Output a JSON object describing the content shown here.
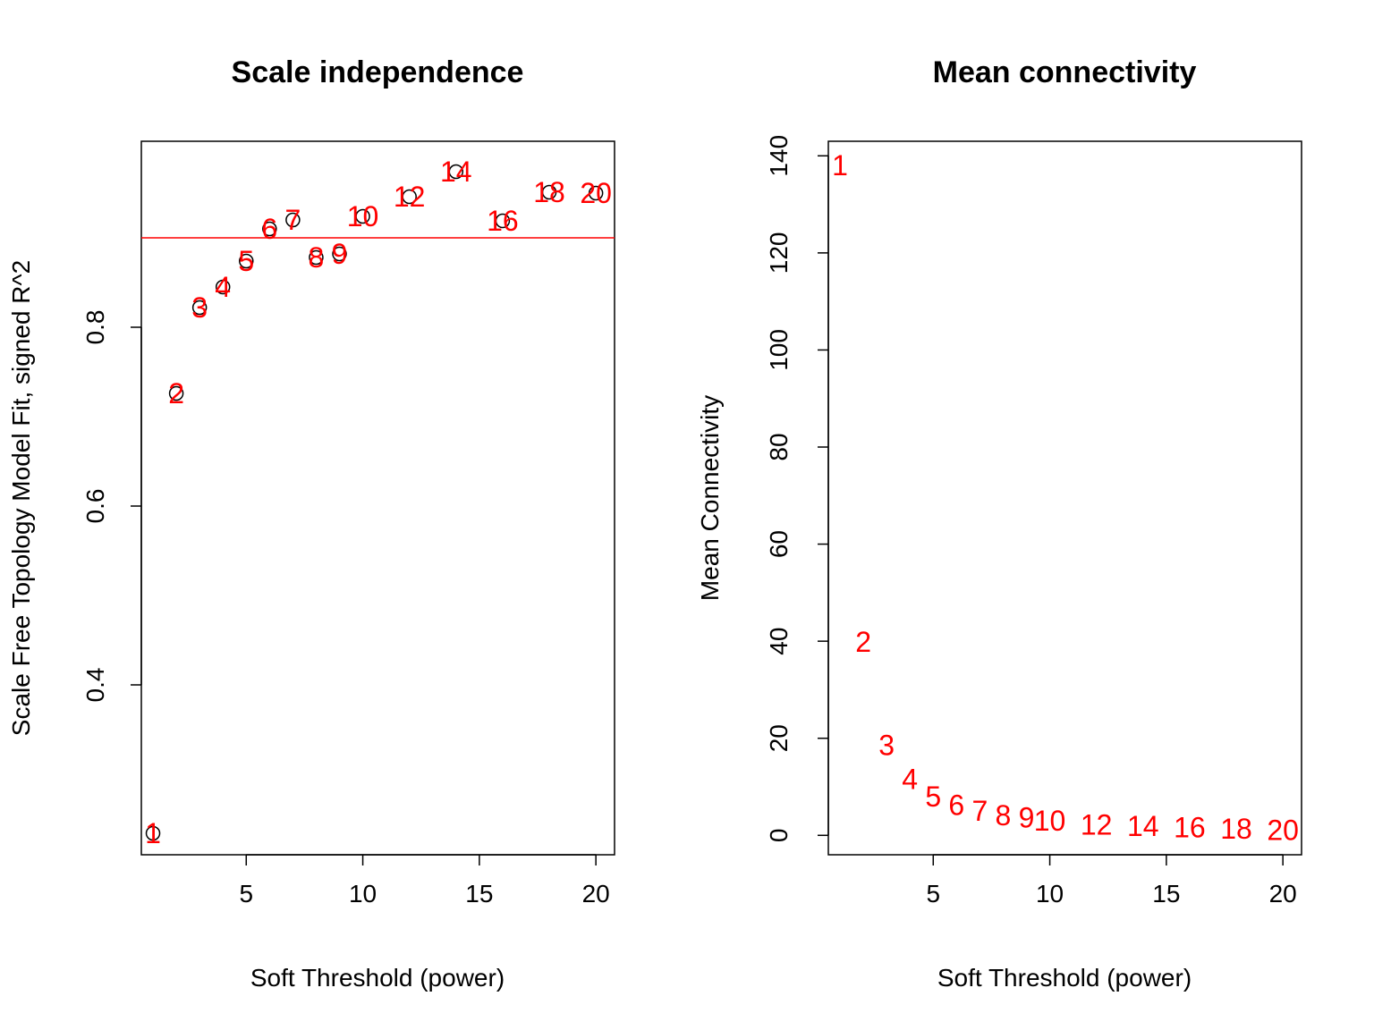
{
  "charts": [
    {
      "id": "scale",
      "type": "scatter",
      "title": "Scale independence",
      "xlabel": "Soft Threshold (power)",
      "ylabel": "Scale Free Topology Model Fit, signed R^2",
      "xlim": [
        0.5,
        20.8
      ],
      "ylim": [
        0.21,
        1.008
      ],
      "xticks": [
        5,
        10,
        15,
        20
      ],
      "yticks": [
        0.4,
        0.6,
        0.8
      ],
      "ytick_labels": [
        "0.4",
        "0.6",
        "0.8"
      ],
      "hline": 0.9,
      "hline_color": "#ff0000",
      "label_color": "#ff0000",
      "show_markers": true,
      "points": [
        {
          "x": 1,
          "y": 0.234,
          "label": "1"
        },
        {
          "x": 2,
          "y": 0.726,
          "label": "2"
        },
        {
          "x": 3,
          "y": 0.822,
          "label": "3"
        },
        {
          "x": 4,
          "y": 0.845,
          "label": "4"
        },
        {
          "x": 5,
          "y": 0.874,
          "label": "5"
        },
        {
          "x": 6,
          "y": 0.91,
          "label": "6"
        },
        {
          "x": 7,
          "y": 0.92,
          "label": "7"
        },
        {
          "x": 8,
          "y": 0.878,
          "label": "8"
        },
        {
          "x": 9,
          "y": 0.882,
          "label": "9"
        },
        {
          "x": 10,
          "y": 0.924,
          "label": "10"
        },
        {
          "x": 12,
          "y": 0.946,
          "label": "12"
        },
        {
          "x": 14,
          "y": 0.974,
          "label": "14"
        },
        {
          "x": 16,
          "y": 0.919,
          "label": "16"
        },
        {
          "x": 18,
          "y": 0.951,
          "label": "18"
        },
        {
          "x": 20,
          "y": 0.95,
          "label": "20"
        }
      ]
    },
    {
      "id": "connectivity",
      "type": "scatter",
      "title": "Mean connectivity",
      "xlabel": "Soft Threshold (power)",
      "ylabel": "Mean Connectivity",
      "xlim": [
        0.5,
        20.8
      ],
      "ylim": [
        -4,
        143
      ],
      "xticks": [
        5,
        10,
        15,
        20
      ],
      "yticks": [
        0,
        20,
        40,
        60,
        80,
        100,
        120,
        140
      ],
      "ytick_labels": [
        "0",
        "20",
        "40",
        "60",
        "80",
        "100",
        "120",
        "140"
      ],
      "label_color": "#ff0000",
      "show_markers": false,
      "points": [
        {
          "x": 1,
          "y": 138.0,
          "label": "1"
        },
        {
          "x": 2,
          "y": 39.8,
          "label": "2"
        },
        {
          "x": 3,
          "y": 18.6,
          "label": "3"
        },
        {
          "x": 4,
          "y": 11.6,
          "label": "4"
        },
        {
          "x": 5,
          "y": 8.0,
          "label": "5"
        },
        {
          "x": 6,
          "y": 6.2,
          "label": "6"
        },
        {
          "x": 7,
          "y": 5.0,
          "label": "7"
        },
        {
          "x": 8,
          "y": 4.1,
          "label": "8"
        },
        {
          "x": 9,
          "y": 3.6,
          "label": "9"
        },
        {
          "x": 10,
          "y": 3.0,
          "label": "10"
        },
        {
          "x": 12,
          "y": 2.2,
          "label": "12"
        },
        {
          "x": 14,
          "y": 1.9,
          "label": "14"
        },
        {
          "x": 16,
          "y": 1.6,
          "label": "16"
        },
        {
          "x": 18,
          "y": 1.3,
          "label": "18"
        },
        {
          "x": 20,
          "y": 1.1,
          "label": "20"
        }
      ]
    }
  ]
}
